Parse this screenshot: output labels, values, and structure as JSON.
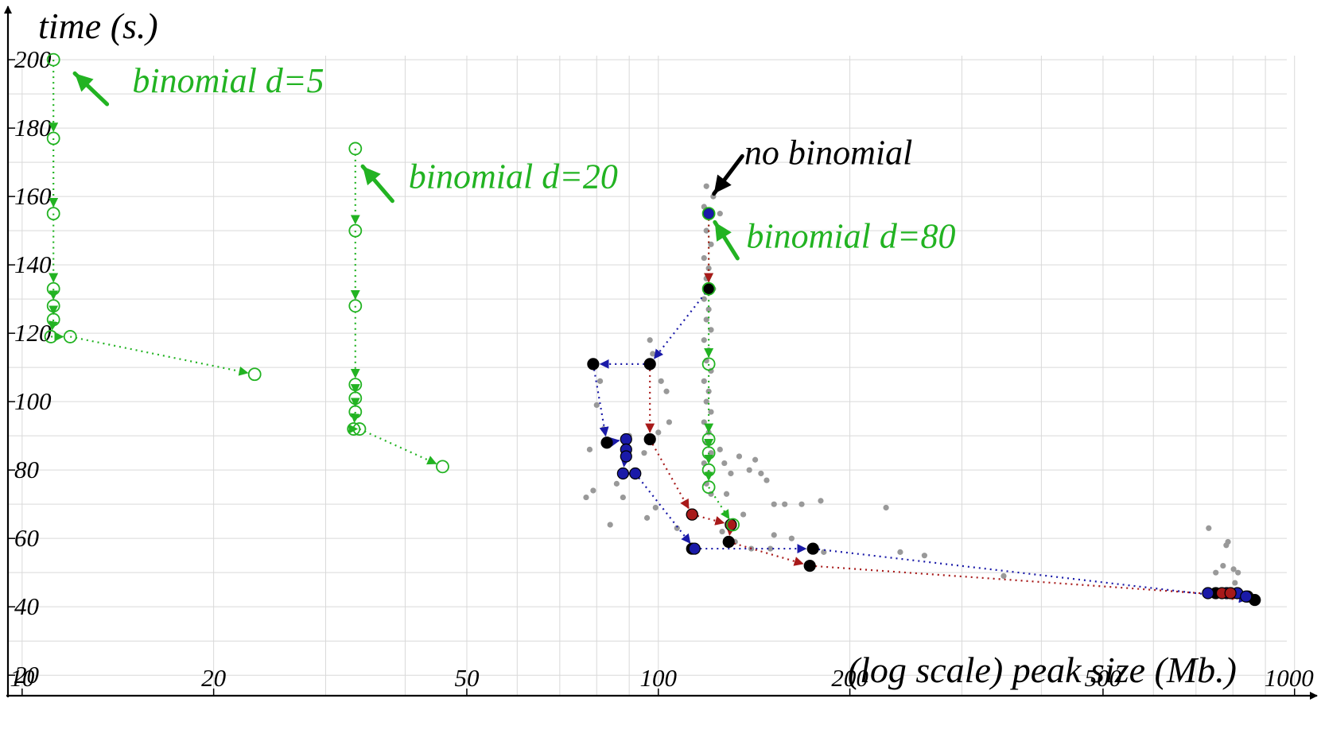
{
  "chart_data": {
    "type": "scatter",
    "title": "",
    "xlabel": "(log scale) peak size (Mb.)",
    "ylabel": "time (s.)",
    "xscale": "log",
    "xlim": [
      9.5,
      1030
    ],
    "ylim": [
      14,
      207
    ],
    "grid": true,
    "xticks": [
      10,
      20,
      50,
      100,
      200,
      500,
      1000
    ],
    "yticks": [
      20,
      40,
      60,
      80,
      100,
      120,
      140,
      160,
      180,
      200
    ],
    "colors": {
      "green": "#22b322",
      "blue": "#1a1aa8",
      "red": "#a81a1a",
      "black": "#000000",
      "gray": "#999999",
      "grid": "#d9d9d9"
    },
    "annotations": [
      {
        "text": "binomial d=5",
        "color": "#22b322",
        "x": 14.9,
        "y": 190.5,
        "arrow_from": [
          13.6,
          187
        ],
        "arrow_to": [
          12.1,
          196
        ]
      },
      {
        "text": "binomial d=20",
        "color": "#22b322",
        "x": 40.5,
        "y": 162.5,
        "arrow_from": [
          38.2,
          158.7
        ],
        "arrow_to": [
          34.3,
          168.8
        ]
      },
      {
        "text": "no binomial",
        "color": "#000000",
        "x": 136.5,
        "y": 169.5,
        "arrow_from": [
          135.5,
          171.8
        ],
        "arrow_to": [
          122.3,
          160.8
        ]
      },
      {
        "text": "binomial d=80",
        "color": "#22b322",
        "x": 137.5,
        "y": 145,
        "arrow_from": [
          133.2,
          141.9
        ],
        "arrow_to": [
          122.7,
          152.5
        ]
      }
    ],
    "series": [
      {
        "role": "background",
        "color": "#999999",
        "points": [
          [
            119,
            163
          ],
          [
            122,
            160
          ],
          [
            118,
            157
          ],
          [
            125,
            155
          ],
          [
            119,
            150
          ],
          [
            121,
            146
          ],
          [
            118,
            142
          ],
          [
            120,
            139
          ],
          [
            119,
            136
          ],
          [
            122,
            133
          ],
          [
            118,
            130
          ],
          [
            120,
            127
          ],
          [
            119,
            124
          ],
          [
            121,
            121
          ],
          [
            118,
            118
          ],
          [
            120,
            115
          ],
          [
            119,
            112
          ],
          [
            121,
            109
          ],
          [
            118,
            106
          ],
          [
            120,
            103
          ],
          [
            119,
            100
          ],
          [
            121,
            97
          ],
          [
            118,
            94
          ],
          [
            120,
            91
          ],
          [
            119,
            88
          ],
          [
            121,
            85
          ],
          [
            118,
            82
          ],
          [
            120,
            79
          ],
          [
            119,
            76
          ],
          [
            121,
            73
          ],
          [
            125,
            86
          ],
          [
            127,
            82
          ],
          [
            130,
            79
          ],
          [
            134,
            84
          ],
          [
            139,
            80
          ],
          [
            142,
            83
          ],
          [
            145,
            79
          ],
          [
            148,
            77
          ],
          [
            152,
            70
          ],
          [
            158,
            70
          ],
          [
            168,
            70
          ],
          [
            180,
            71
          ],
          [
            228,
            69
          ],
          [
            152,
            61
          ],
          [
            162,
            60
          ],
          [
            136,
            67
          ],
          [
            128,
            73
          ],
          [
            97,
            118
          ],
          [
            98,
            114
          ],
          [
            101,
            106
          ],
          [
            103,
            103
          ],
          [
            81,
            106
          ],
          [
            80,
            99
          ],
          [
            78,
            86
          ],
          [
            79,
            74
          ],
          [
            77,
            72
          ],
          [
            82,
            92
          ],
          [
            90,
            90
          ],
          [
            100,
            91
          ],
          [
            104,
            94
          ],
          [
            95,
            85
          ],
          [
            88,
            79
          ],
          [
            86,
            76
          ],
          [
            88,
            72
          ],
          [
            99,
            69
          ],
          [
            96,
            66
          ],
          [
            107,
            63
          ],
          [
            84,
            64
          ],
          [
            126,
            62
          ],
          [
            132,
            59
          ],
          [
            140,
            57
          ],
          [
            150,
            57
          ],
          [
            182,
            56
          ],
          [
            240,
            56
          ],
          [
            262,
            55
          ],
          [
            349,
            49
          ],
          [
            733,
            63
          ],
          [
            781,
            58
          ],
          [
            786,
            59
          ],
          [
            772,
            52
          ],
          [
            802,
            51
          ],
          [
            815,
            50
          ],
          [
            806,
            47
          ],
          [
            752,
            50
          ]
        ]
      },
      {
        "name": "",
        "role": "d5",
        "color": "#22b322",
        "marker": "open-circle",
        "points": [
          [
            11.2,
            200
          ],
          [
            11.2,
            177
          ],
          [
            11.2,
            155
          ],
          [
            11.2,
            133
          ],
          [
            11.2,
            128
          ],
          [
            11.2,
            124
          ],
          [
            11.1,
            119
          ],
          [
            11.9,
            119
          ],
          [
            23.2,
            108
          ]
        ]
      },
      {
        "name": "",
        "role": "d20",
        "color": "#22b322",
        "marker": "open-circle",
        "points": [
          [
            33.4,
            174
          ],
          [
            33.4,
            150
          ],
          [
            33.4,
            128
          ],
          [
            33.4,
            105
          ],
          [
            33.4,
            101
          ],
          [
            33.4,
            97
          ],
          [
            33.2,
            92
          ],
          [
            33.9,
            92
          ],
          [
            45.8,
            81
          ]
        ]
      },
      {
        "name": "",
        "role": "d80",
        "color": "#22b322",
        "marker": "open-circle",
        "points": [
          [
            120,
            155
          ],
          [
            120,
            133
          ],
          [
            120,
            111
          ],
          [
            120,
            89
          ],
          [
            120,
            85
          ],
          [
            120,
            80
          ],
          [
            120,
            75
          ],
          [
            131,
            64
          ]
        ]
      },
      {
        "name": "",
        "role": "black",
        "color": "#000000",
        "marker": "filled-circle",
        "points": [
          [
            120,
            155
          ],
          [
            120,
            133
          ],
          [
            97,
            111
          ],
          [
            79,
            111
          ],
          [
            83,
            88
          ],
          [
            97,
            89
          ],
          [
            113,
            67
          ],
          [
            130,
            64
          ],
          [
            129,
            59
          ],
          [
            113,
            57
          ],
          [
            175,
            57
          ],
          [
            173,
            52
          ],
          [
            752,
            44
          ],
          [
            844,
            43
          ],
          [
            866,
            42
          ]
        ]
      },
      {
        "name": "",
        "role": "blue",
        "color": "#1a1aa8",
        "marker": "filled-circle",
        "points": [
          [
            120,
            155
          ],
          [
            89,
            89
          ],
          [
            89,
            86
          ],
          [
            89,
            84
          ],
          [
            88,
            79
          ],
          [
            92,
            79
          ],
          [
            114,
            57
          ],
          [
            731,
            44
          ],
          [
            782,
            44
          ],
          [
            813,
            44
          ],
          [
            839,
            43
          ]
        ]
      },
      {
        "name": "",
        "role": "red",
        "color": "#a81a1a",
        "marker": "filled-circle",
        "points": [
          [
            113,
            67
          ],
          [
            130,
            64
          ],
          [
            769,
            44
          ],
          [
            793,
            44
          ]
        ]
      }
    ],
    "paths": [
      {
        "color": "#22b322",
        "points": [
          [
            11.2,
            200
          ],
          [
            11.2,
            177
          ],
          [
            11.2,
            155
          ],
          [
            11.2,
            133
          ],
          [
            11.2,
            128
          ],
          [
            11.2,
            124
          ],
          [
            11.1,
            119
          ],
          [
            11.9,
            119
          ],
          [
            23.2,
            108
          ]
        ]
      },
      {
        "color": "#22b322",
        "points": [
          [
            33.4,
            174
          ],
          [
            33.4,
            150
          ],
          [
            33.4,
            128
          ],
          [
            33.4,
            105
          ],
          [
            33.4,
            101
          ],
          [
            33.4,
            97
          ],
          [
            33.2,
            92
          ],
          [
            33.9,
            92
          ],
          [
            45.8,
            81
          ]
        ]
      },
      {
        "color": "#22b322",
        "points": [
          [
            120,
            155
          ],
          [
            120,
            133
          ],
          [
            120,
            111
          ],
          [
            120,
            89
          ],
          [
            120,
            85
          ],
          [
            120,
            80
          ],
          [
            120,
            75
          ],
          [
            131,
            64
          ]
        ]
      },
      {
        "color": "#1a1aa8",
        "points": [
          [
            120,
            133
          ],
          [
            97,
            111
          ],
          [
            79,
            111
          ],
          [
            83,
            88
          ],
          [
            89,
            89
          ],
          [
            89,
            86
          ],
          [
            88,
            79
          ],
          [
            92,
            79
          ],
          [
            114,
            57
          ],
          [
            175,
            57
          ],
          [
            866,
            42
          ]
        ]
      },
      {
        "color": "#a81a1a",
        "points": [
          [
            120,
            155
          ],
          [
            120,
            133
          ]
        ]
      },
      {
        "color": "#a81a1a",
        "points": [
          [
            97,
            111
          ],
          [
            97,
            89
          ],
          [
            113,
            67
          ],
          [
            130,
            64
          ],
          [
            129,
            59
          ],
          [
            173,
            52
          ],
          [
            844,
            43
          ]
        ]
      }
    ]
  }
}
